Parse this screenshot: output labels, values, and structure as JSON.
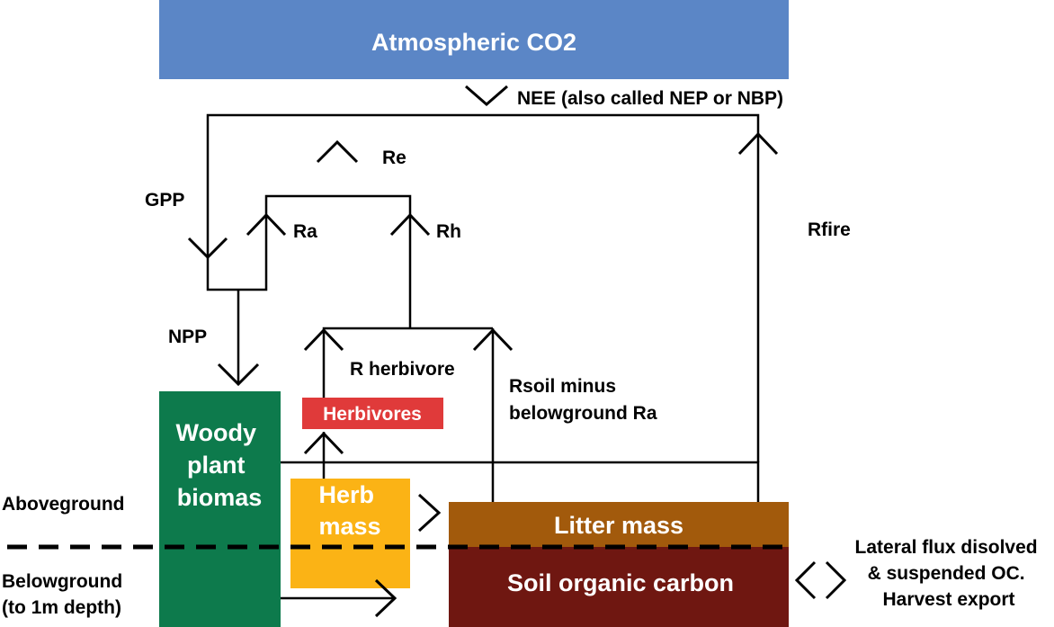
{
  "boxes": {
    "atmosphere": {
      "label": "Atmospheric CO2",
      "color": "#5b86c6"
    },
    "woody": {
      "lines": [
        "Woody",
        "plant",
        "biomas"
      ],
      "color": "#0d7a4c"
    },
    "herb": {
      "lines": [
        "Herb",
        "mass"
      ],
      "color": "#fbb315"
    },
    "herbivores": {
      "label": "Herbivores",
      "color": "#e03a3a"
    },
    "litter": {
      "label": "Litter mass",
      "color": "#a25a0c"
    },
    "soil": {
      "label": "Soil organic carbon",
      "color": "#6f1711"
    }
  },
  "flux_labels": {
    "nee": "NEE (also called NEP or NBP)",
    "re": "Re",
    "gpp": "GPP",
    "ra": "Ra",
    "rh": "Rh",
    "rfire": "Rfire",
    "npp": "NPP",
    "r_herbivore": "R herbivore",
    "rsoil_line1": "Rsoil minus",
    "rsoil_line2": "belowground Ra",
    "lateral_line1": "Lateral flux disolved",
    "lateral_line2": "& suspended OC.",
    "lateral_line3": "Harvest export"
  },
  "zones": {
    "aboveground": "Aboveground",
    "belowground_line1": "Belowground",
    "belowground_line2": "(to 1m depth)"
  }
}
